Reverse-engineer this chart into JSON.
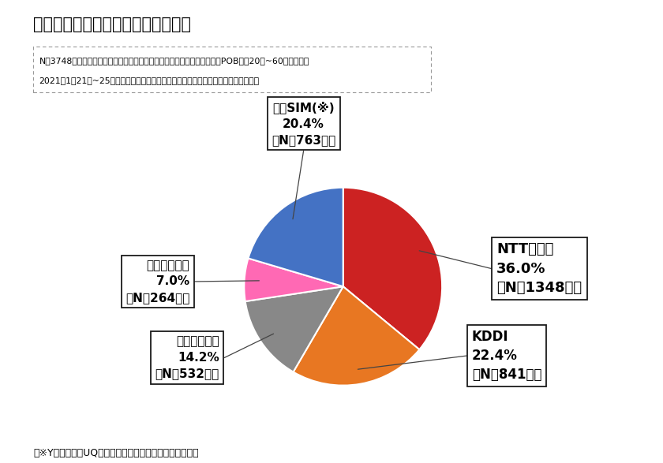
{
  "title": "図表１）現在契約中の携帯通信会社",
  "note_line1": "N＝3748人、スマートフォン・携帯電話を現在契約していると回答。全国POB会員20代~60代以上男女",
  "note_line2": "2021年1月21日~25日インターネットリサーチ　　ソフトブレーン・フィールド調べ",
  "footer": "（※Yモバイル・UQなど大手キャリアサブブランド含む）",
  "slices": [
    {
      "label": "NTTドコモ",
      "pct": 36.0,
      "n": 1348,
      "color": "#CC2222"
    },
    {
      "label": "KDDI",
      "pct": 22.4,
      "n": 841,
      "color": "#E87722"
    },
    {
      "label": "ソフトバンク",
      "pct": 14.2,
      "n": 532,
      "color": "#888888"
    },
    {
      "label": "楽天モバイル",
      "pct": 7.0,
      "n": 264,
      "color": "#FF69B4"
    },
    {
      "label": "格安SIM(※)",
      "pct": 20.4,
      "n": 763,
      "color": "#4472C4"
    }
  ],
  "start_angle": 90,
  "bg_color": "#FFFFFF"
}
